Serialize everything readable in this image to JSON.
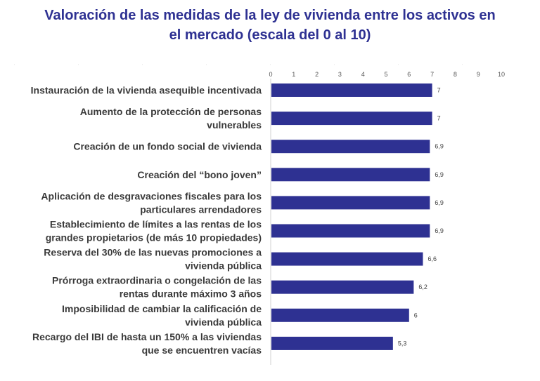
{
  "chart_data": {
    "type": "bar",
    "orientation": "horizontal",
    "title_lines": [
      "Valoración de las medidas de la ley de vivienda entre los activos en",
      "el mercado (escala del 0 al 10)"
    ],
    "xlim": [
      0,
      10
    ],
    "x_ticks": [
      "0",
      "1",
      "2",
      "3",
      "4",
      "5",
      "6",
      "7",
      "8",
      "9",
      "10"
    ],
    "x_axis_position": "top",
    "grid": false,
    "bar_color": "#2e3192",
    "categories": [
      [
        "Instauración de la vivienda asequible incentivada"
      ],
      [
        "Aumento de la protección de personas",
        "vulnerables"
      ],
      [
        "Creación de un fondo social de vivienda"
      ],
      [
        "Creación del “bono joven”"
      ],
      [
        "Aplicación de desgravaciones fiscales para los",
        "particulares arrendadores"
      ],
      [
        "Establecimiento de límites a las rentas de los",
        "grandes propietarios (de más 10 propiedades)"
      ],
      [
        "Reserva del 30% de las nuevas promociones a",
        "vivienda pública"
      ],
      [
        "Prórroga extraordinaria o congelación de las",
        "rentas durante máximo 3 años"
      ],
      [
        "Imposibilidad de cambiar la calificación de",
        "vivienda pública"
      ],
      [
        "Recargo del IBI de hasta un 150% a las viviendas",
        "que se encuentren vacías"
      ]
    ],
    "values": [
      7,
      7,
      6.9,
      6.9,
      6.9,
      6.9,
      6.6,
      6.2,
      6,
      5.3
    ],
    "value_labels": [
      "7",
      "7",
      "6,9",
      "6,9",
      "6,9",
      "6,9",
      "6,6",
      "6,2",
      "6",
      "5,3"
    ]
  }
}
